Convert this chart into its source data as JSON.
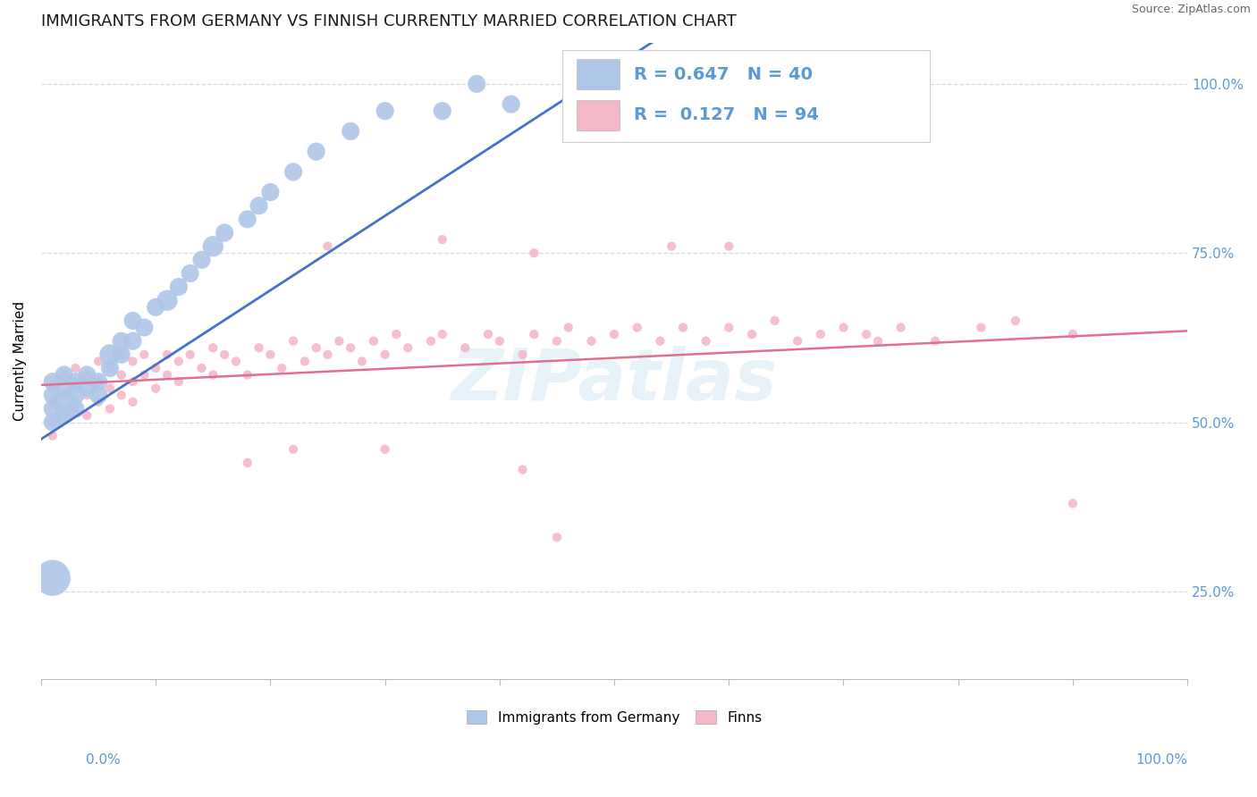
{
  "title": "IMMIGRANTS FROM GERMANY VS FINNISH CURRENTLY MARRIED CORRELATION CHART",
  "source": "Source: ZipAtlas.com",
  "ylabel": "Currently Married",
  "watermark": "ZIPatlas",
  "legend_blue_r": "R = 0.647",
  "legend_blue_n": "N = 40",
  "legend_pink_r": "R = 0.127",
  "legend_pink_n": "N = 94",
  "legend_label1": "Immigrants from Germany",
  "legend_label2": "Finns",
  "blue_color": "#aec6e8",
  "blue_line_color": "#4472c4",
  "pink_color": "#f4b8c8",
  "pink_line_color": "#e07090",
  "blue_scatter_x": [
    0.01,
    0.01,
    0.01,
    0.01,
    0.02,
    0.02,
    0.02,
    0.02,
    0.03,
    0.03,
    0.03,
    0.04,
    0.04,
    0.05,
    0.05,
    0.06,
    0.06,
    0.07,
    0.07,
    0.08,
    0.08,
    0.09,
    0.1,
    0.11,
    0.12,
    0.13,
    0.14,
    0.15,
    0.16,
    0.18,
    0.19,
    0.2,
    0.22,
    0.24,
    0.27,
    0.3,
    0.35,
    0.38,
    0.41,
    0.01
  ],
  "blue_scatter_y": [
    0.52,
    0.54,
    0.56,
    0.5,
    0.53,
    0.55,
    0.57,
    0.51,
    0.54,
    0.52,
    0.56,
    0.55,
    0.57,
    0.54,
    0.56,
    0.58,
    0.6,
    0.6,
    0.62,
    0.62,
    0.65,
    0.64,
    0.67,
    0.68,
    0.7,
    0.72,
    0.74,
    0.76,
    0.78,
    0.8,
    0.82,
    0.84,
    0.87,
    0.9,
    0.93,
    0.96,
    0.96,
    1.0,
    0.97,
    0.27
  ],
  "blue_scatter_sizes": [
    30,
    30,
    30,
    30,
    50,
    30,
    30,
    30,
    30,
    30,
    30,
    30,
    30,
    30,
    30,
    30,
    40,
    30,
    30,
    30,
    30,
    30,
    30,
    40,
    30,
    30,
    30,
    40,
    30,
    30,
    30,
    30,
    30,
    30,
    30,
    30,
    30,
    30,
    30,
    120
  ],
  "pink_scatter_x": [
    0.01,
    0.01,
    0.01,
    0.01,
    0.02,
    0.02,
    0.02,
    0.03,
    0.03,
    0.03,
    0.03,
    0.04,
    0.04,
    0.04,
    0.05,
    0.05,
    0.05,
    0.06,
    0.06,
    0.06,
    0.07,
    0.07,
    0.07,
    0.08,
    0.08,
    0.08,
    0.09,
    0.09,
    0.1,
    0.1,
    0.11,
    0.11,
    0.12,
    0.12,
    0.13,
    0.14,
    0.15,
    0.15,
    0.16,
    0.17,
    0.18,
    0.19,
    0.2,
    0.21,
    0.22,
    0.23,
    0.24,
    0.25,
    0.26,
    0.27,
    0.28,
    0.29,
    0.3,
    0.31,
    0.32,
    0.34,
    0.35,
    0.37,
    0.39,
    0.4,
    0.42,
    0.43,
    0.45,
    0.46,
    0.48,
    0.5,
    0.52,
    0.54,
    0.56,
    0.58,
    0.6,
    0.62,
    0.64,
    0.66,
    0.7,
    0.72,
    0.75,
    0.78,
    0.82,
    0.85,
    0.9,
    0.55,
    0.35,
    0.25,
    0.43,
    0.6,
    0.68,
    0.73,
    0.42,
    0.3,
    0.18,
    0.22,
    0.9,
    0.45
  ],
  "pink_scatter_y": [
    0.5,
    0.53,
    0.55,
    0.48,
    0.54,
    0.57,
    0.51,
    0.55,
    0.52,
    0.56,
    0.58,
    0.54,
    0.57,
    0.51,
    0.53,
    0.56,
    0.59,
    0.55,
    0.58,
    0.52,
    0.54,
    0.57,
    0.6,
    0.56,
    0.59,
    0.53,
    0.57,
    0.6,
    0.55,
    0.58,
    0.57,
    0.6,
    0.56,
    0.59,
    0.6,
    0.58,
    0.61,
    0.57,
    0.6,
    0.59,
    0.57,
    0.61,
    0.6,
    0.58,
    0.62,
    0.59,
    0.61,
    0.6,
    0.62,
    0.61,
    0.59,
    0.62,
    0.6,
    0.63,
    0.61,
    0.62,
    0.63,
    0.61,
    0.63,
    0.62,
    0.6,
    0.63,
    0.62,
    0.64,
    0.62,
    0.63,
    0.64,
    0.62,
    0.64,
    0.62,
    0.64,
    0.63,
    0.65,
    0.62,
    0.64,
    0.63,
    0.64,
    0.62,
    0.64,
    0.65,
    0.63,
    0.76,
    0.77,
    0.76,
    0.75,
    0.76,
    0.63,
    0.62,
    0.43,
    0.46,
    0.44,
    0.46,
    0.38,
    0.33
  ],
  "xlim": [
    0.0,
    1.0
  ],
  "ylim": [
    0.12,
    1.06
  ],
  "yticks": [
    0.25,
    0.5,
    0.75,
    1.0
  ],
  "yticklabels_right": [
    "25.0%",
    "50.0%",
    "75.0%",
    "100.0%"
  ],
  "xticks": [
    0.0,
    0.1,
    0.2,
    0.3,
    0.4,
    0.5,
    0.6,
    0.7,
    0.8,
    0.9,
    1.0
  ],
  "grid_color": "#d8d8d8",
  "title_fontsize": 13,
  "axis_label_color": "#5b9bd5",
  "legend_fontsize": 14
}
